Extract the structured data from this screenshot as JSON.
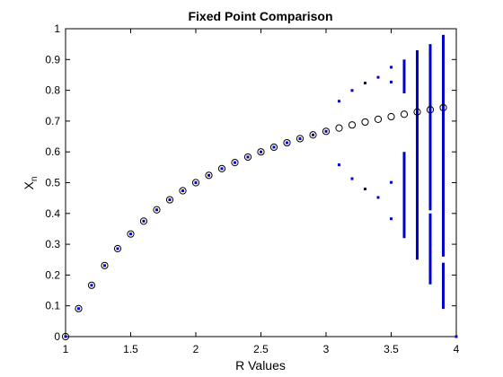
{
  "chart_data": {
    "type": "scatter",
    "title": "Fixed Point Comparison",
    "xlabel": "R Values",
    "ylabel": "X",
    "ylabel_subscript": "n",
    "xlim": [
      1,
      4
    ],
    "ylim": [
      0,
      1
    ],
    "xticks": [
      "1",
      "1.5",
      "2",
      "2.5",
      "3",
      "3.5",
      "4"
    ],
    "yticks": [
      "0",
      "0.1",
      "0.2",
      "0.3",
      "0.4",
      "0.5",
      "0.6",
      "0.7",
      "0.8",
      "0.9",
      "1"
    ],
    "grid": false,
    "colors": {
      "fixed_point": "#000000",
      "simulation": "#0000cc",
      "axes": "#000000"
    },
    "series": [
      {
        "marker": "open-circle",
        "x": [
          1.0,
          1.1,
          1.2,
          1.3,
          1.4,
          1.5,
          1.6,
          1.7,
          1.8,
          1.9,
          2.0,
          2.1,
          2.2,
          2.3,
          2.4,
          2.5,
          2.6,
          2.7,
          2.8,
          2.9,
          3.0,
          3.1,
          3.2,
          3.3,
          3.4,
          3.5,
          3.6,
          3.7,
          3.8,
          3.9
        ],
        "values": [
          0.0,
          0.0909,
          0.1667,
          0.2308,
          0.2857,
          0.3333,
          0.375,
          0.4118,
          0.4444,
          0.4737,
          0.5,
          0.5238,
          0.5455,
          0.5652,
          0.5833,
          0.6,
          0.6154,
          0.6296,
          0.6429,
          0.6552,
          0.6667,
          0.6774,
          0.6875,
          0.697,
          0.7059,
          0.7143,
          0.7222,
          0.7297,
          0.7368,
          0.7436
        ]
      },
      {
        "marker": "dot",
        "x": [
          1.0,
          1.1,
          1.2,
          1.3,
          1.4,
          1.5,
          1.6,
          1.7,
          1.8,
          1.9,
          2.0,
          2.1,
          2.2,
          2.3,
          2.4,
          2.5,
          2.6,
          2.7,
          2.8,
          2.9,
          3.0,
          3.1,
          3.1,
          3.2,
          3.2,
          3.3,
          3.3,
          3.4,
          3.4,
          3.5,
          3.5,
          3.5,
          3.5,
          4.0
        ],
        "values": [
          0.0,
          0.0909,
          0.1667,
          0.2308,
          0.2857,
          0.3333,
          0.375,
          0.4118,
          0.4444,
          0.4737,
          0.5,
          0.5238,
          0.5455,
          0.5652,
          0.5833,
          0.6,
          0.6154,
          0.6296,
          0.6429,
          0.6552,
          0.6667,
          0.7646,
          0.558,
          0.7995,
          0.513,
          0.8236,
          0.4794,
          0.8422,
          0.452,
          0.875,
          0.8269,
          0.5009,
          0.3828,
          0.0
        ]
      },
      {
        "marker": "vertical-band",
        "x": [
          3.6,
          3.6,
          3.7,
          3.8,
          3.8,
          3.9,
          3.9
        ],
        "y_low": [
          0.79,
          0.32,
          0.25,
          0.41,
          0.17,
          0.26,
          0.09
        ],
        "y_high": [
          0.9,
          0.6,
          0.93,
          0.95,
          0.4,
          0.98,
          0.24
        ]
      }
    ]
  }
}
